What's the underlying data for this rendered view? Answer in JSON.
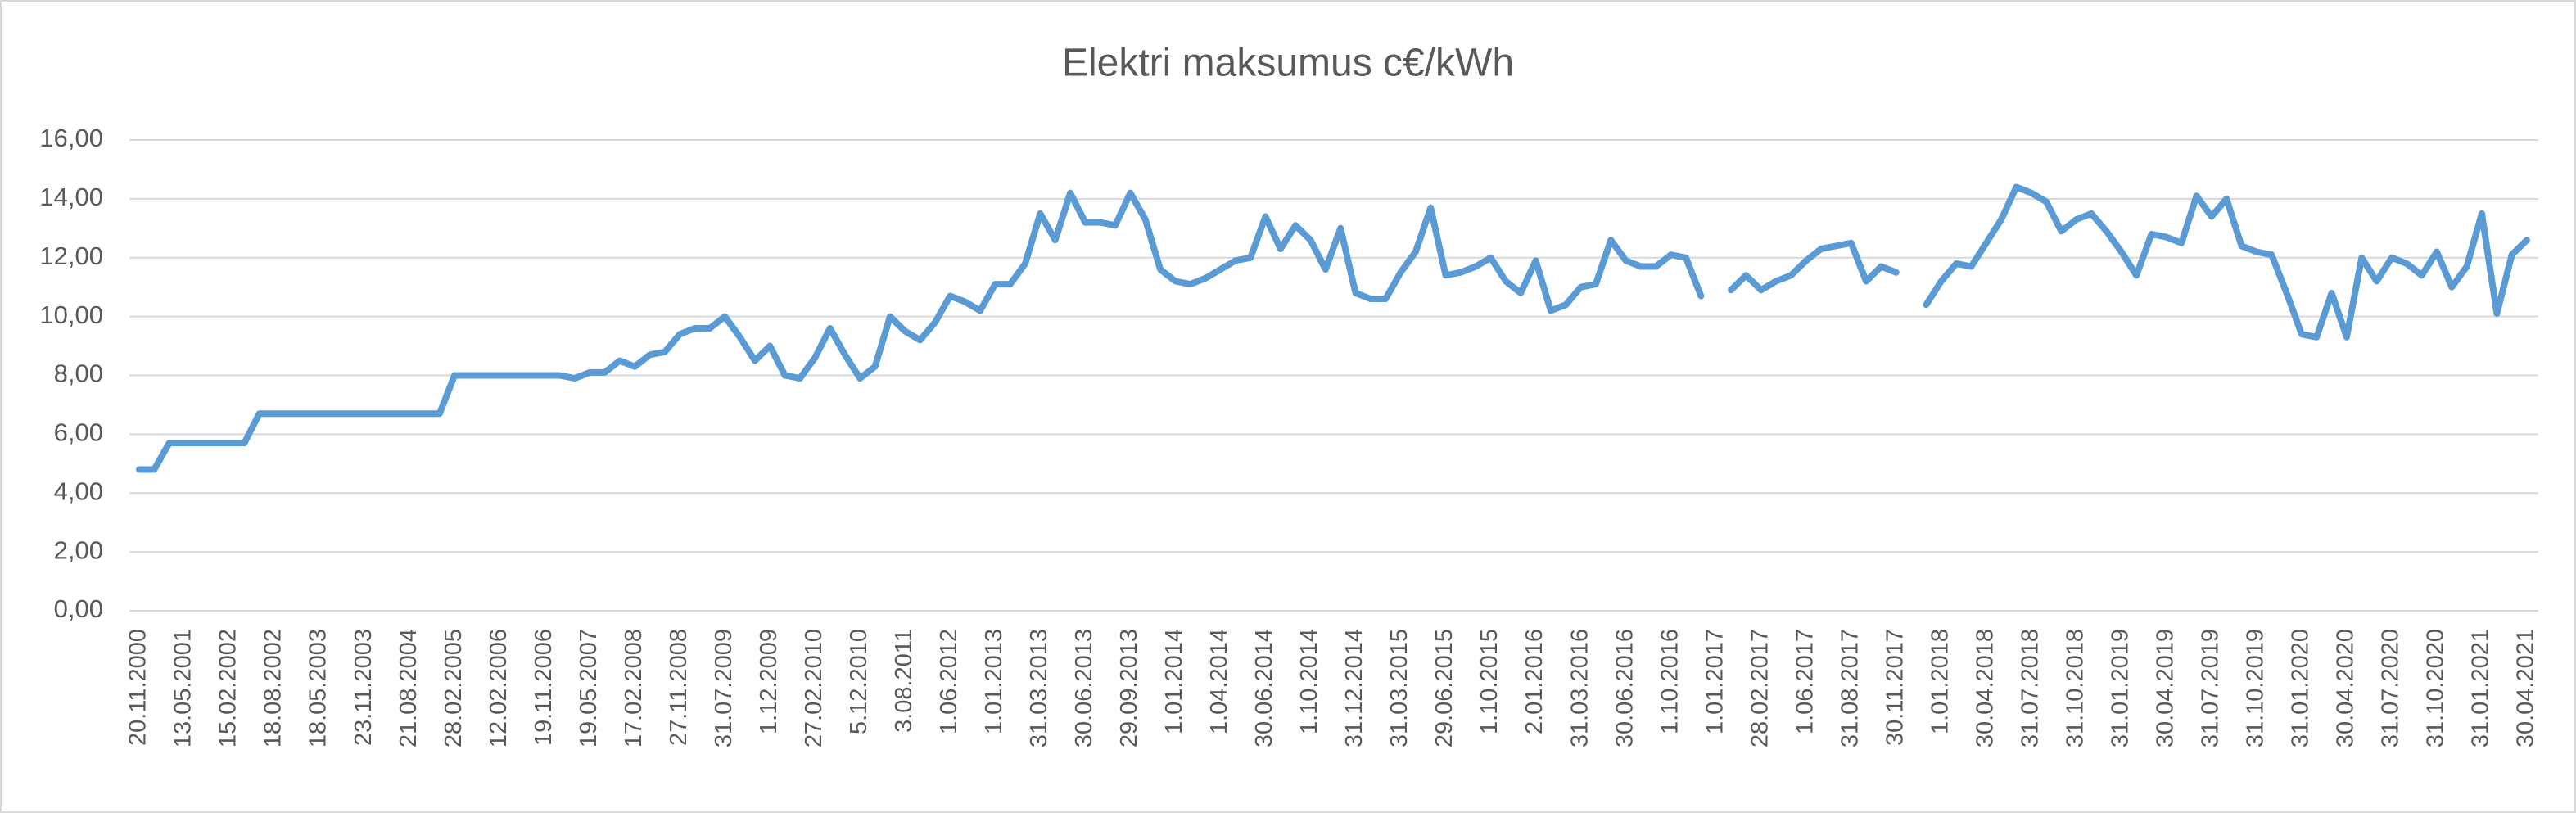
{
  "chart_data": {
    "type": "line",
    "title": "Elektri maksumus c€/kWh",
    "color": "#5b9bd5",
    "grid": true,
    "ylim": [
      0,
      16
    ],
    "yticks": [
      {
        "value": 0,
        "label": "0,00"
      },
      {
        "value": 2,
        "label": "2,00"
      },
      {
        "value": 4,
        "label": "4,00"
      },
      {
        "value": 6,
        "label": "6,00"
      },
      {
        "value": 8,
        "label": "8,00"
      },
      {
        "value": 10,
        "label": "10,00"
      },
      {
        "value": 12,
        "label": "12,00"
      },
      {
        "value": 14,
        "label": "14,00"
      },
      {
        "value": 16,
        "label": "16,00"
      }
    ],
    "categories": [
      "20.11.2000",
      null,
      null,
      "13.05.2001",
      null,
      null,
      "15.02.2002",
      null,
      null,
      "18.08.2002",
      null,
      null,
      "18.05.2003",
      null,
      null,
      "23.11.2003",
      null,
      null,
      "21.08.2004",
      null,
      null,
      "28.02.2005",
      null,
      null,
      "12.02.2006",
      null,
      null,
      "19.11.2006",
      null,
      null,
      "19.05.2007",
      null,
      null,
      "17.02.2008",
      null,
      null,
      "27.11.2008",
      null,
      null,
      "31.07.2009",
      null,
      null,
      "1.12.2009",
      null,
      null,
      "27.02.2010",
      null,
      null,
      "5.12.2010",
      null,
      null,
      "3.08.2011",
      null,
      null,
      "1.06.2012",
      null,
      null,
      "1.01.2013",
      null,
      null,
      "31.03.2013",
      null,
      null,
      "30.06.2013",
      null,
      null,
      "29.09.2013",
      null,
      null,
      "1.01.2014",
      null,
      null,
      "1.04.2014",
      null,
      null,
      "30.06.2014",
      null,
      null,
      "1.10.2014",
      null,
      null,
      "31.12.2014",
      null,
      null,
      "31.03.2015",
      null,
      null,
      "29.06.2015",
      null,
      null,
      "1.10.2015",
      null,
      null,
      "2.01.2016",
      null,
      null,
      "31.03.2016",
      null,
      null,
      "30.06.2016",
      null,
      null,
      "1.10.2016",
      null,
      null,
      "1.01.2017",
      null,
      null,
      "28.02.2017",
      null,
      null,
      "1.06.2017",
      null,
      null,
      "31.08.2017",
      null,
      null,
      "30.11.2017",
      null,
      null,
      "1.01.2018",
      null,
      null,
      "30.04.2018",
      null,
      null,
      "31.07.2018",
      null,
      null,
      "31.10.2018",
      null,
      null,
      "31.01.2019",
      null,
      null,
      "30.04.2019",
      null,
      null,
      "31.07.2019",
      null,
      null,
      "31.10.2019",
      null,
      null,
      "31.01.2020",
      null,
      null,
      "30.04.2020",
      null,
      null,
      "31.07.2020",
      null,
      null,
      "31.10.2020",
      null,
      null,
      "31.01.2021",
      null,
      null,
      "30.04.2021"
    ],
    "values": [
      4.8,
      4.8,
      5.7,
      5.7,
      5.7,
      5.7,
      5.7,
      5.7,
      6.7,
      6.7,
      6.7,
      6.7,
      6.7,
      6.7,
      6.7,
      6.7,
      6.7,
      6.7,
      6.7,
      6.7,
      6.7,
      8.0,
      8.0,
      8.0,
      8.0,
      8.0,
      8.0,
      8.0,
      8.0,
      7.9,
      8.1,
      8.1,
      8.5,
      8.3,
      8.7,
      8.8,
      9.4,
      9.6,
      9.6,
      10.0,
      9.3,
      8.5,
      9.0,
      8.0,
      7.9,
      8.6,
      9.6,
      8.7,
      7.9,
      8.3,
      10.0,
      9.5,
      9.2,
      9.8,
      10.7,
      10.5,
      10.2,
      11.1,
      11.1,
      11.8,
      13.5,
      12.6,
      14.2,
      13.2,
      13.2,
      13.1,
      14.2,
      13.3,
      11.6,
      11.2,
      11.1,
      11.3,
      11.6,
      11.9,
      12.0,
      13.4,
      12.3,
      13.1,
      12.6,
      11.6,
      13.0,
      10.8,
      10.6,
      10.6,
      11.5,
      12.2,
      13.7,
      11.4,
      11.5,
      11.7,
      12.0,
      11.2,
      10.8,
      11.9,
      10.2,
      10.4,
      11.0,
      11.1,
      12.6,
      11.9,
      11.7,
      11.7,
      12.1,
      12.0,
      10.7,
      null,
      10.9,
      11.4,
      10.9,
      11.2,
      11.4,
      11.9,
      12.3,
      12.4,
      12.5,
      11.2,
      11.7,
      11.5,
      null,
      10.4,
      11.2,
      11.8,
      11.7,
      12.5,
      13.3,
      14.4,
      14.2,
      13.9,
      12.9,
      13.3,
      13.5,
      12.9,
      12.2,
      11.4,
      12.8,
      12.7,
      12.5,
      14.1,
      13.4,
      14.0,
      12.4,
      12.2,
      12.1,
      10.8,
      9.4,
      9.3,
      10.8,
      9.3,
      12.0,
      11.2,
      12.0,
      11.8,
      11.4,
      12.2,
      11.0,
      11.7,
      13.5,
      10.1,
      12.1,
      12.6
    ]
  }
}
